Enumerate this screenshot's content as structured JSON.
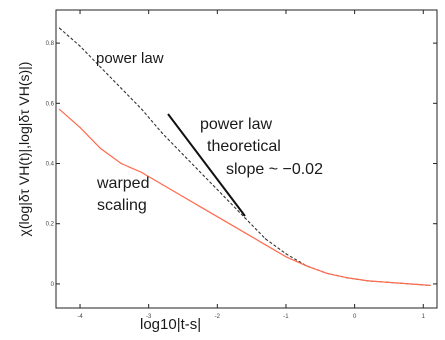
{
  "chart_data": {
    "type": "line",
    "title": "",
    "xlabel": "log10|t-s|",
    "ylabel": "χ(log|δτ VH(t)|,log|δτ VH(s)|)",
    "xlim": [
      -4.35,
      1.2
    ],
    "ylim": [
      -0.08,
      0.91
    ],
    "x_ticks": [
      -4,
      -3,
      -2,
      -1,
      0,
      1
    ],
    "x_tick_labels": [
      "-4",
      "-3",
      "-2",
      "-1",
      "0",
      "1"
    ],
    "y_ticks": [
      0,
      0.2,
      0.4,
      0.6,
      0.8
    ],
    "y_tick_labels": [
      "0",
      "0.2",
      "0.4",
      "0.6",
      "0.8"
    ],
    "grid": false,
    "series": [
      {
        "name": "power law",
        "style": "dashed",
        "color": "#333333",
        "x": [
          -4.3,
          -4.0,
          -3.7,
          -3.4,
          -3.1,
          -2.8,
          -2.5,
          -2.2,
          -1.9,
          -1.6,
          -1.3,
          -1.0,
          -0.7,
          -0.4,
          -0.1,
          0.2,
          0.5,
          0.8,
          1.1
        ],
        "y": [
          0.85,
          0.79,
          0.72,
          0.65,
          0.58,
          0.5,
          0.43,
          0.36,
          0.29,
          0.22,
          0.15,
          0.1,
          0.06,
          0.035,
          0.02,
          0.01,
          0.005,
          0.0,
          -0.005
        ]
      },
      {
        "name": "warped scaling",
        "style": "solid",
        "color": "#ff6a4d",
        "x": [
          -4.3,
          -4.0,
          -3.7,
          -3.4,
          -3.1,
          -2.8,
          -2.5,
          -2.2,
          -1.9,
          -1.6,
          -1.3,
          -1.0,
          -0.7,
          -0.4,
          -0.1,
          0.2,
          0.5,
          0.8,
          1.1
        ],
        "y": [
          0.58,
          0.52,
          0.45,
          0.4,
          0.37,
          0.33,
          0.29,
          0.25,
          0.21,
          0.17,
          0.13,
          0.09,
          0.06,
          0.035,
          0.02,
          0.01,
          0.005,
          0.0,
          -0.005
        ]
      }
    ],
    "annotations": {
      "power_law_label": "power law",
      "power_law_line_1": "power law",
      "power_law_line_2": "theoretical",
      "slope_text": "slope ~ −0.02",
      "warped_line_1": "warped",
      "warped_line_2": "scaling"
    }
  }
}
